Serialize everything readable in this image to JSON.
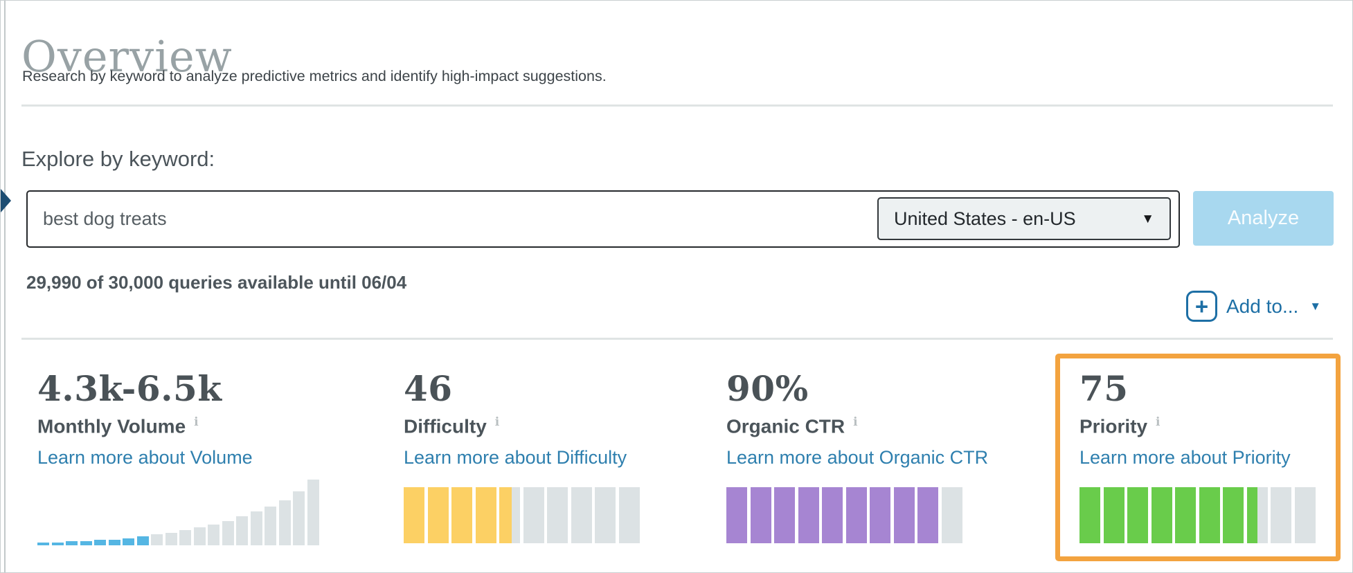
{
  "page": {
    "title": "Overview",
    "subtitle": "Research by keyword to analyze predictive metrics and identify high-impact suggestions."
  },
  "explore": {
    "heading": "Explore by keyword:",
    "keyword_value": "best dog treats",
    "locale_value": "United States - en-US",
    "analyze_label": "Analyze",
    "quota_text": "29,990 of 30,000 queries available until 06/04",
    "add_to_label": "Add to..."
  },
  "metrics": [
    {
      "value": "4.3k-6.5k",
      "label": "Monthly Volume",
      "info_icon": "i",
      "learn_more": "Learn more about Volume",
      "highlighted": false
    },
    {
      "value": "46",
      "label": "Difficulty",
      "info_icon": "i",
      "learn_more": "Learn more about Difficulty",
      "highlighted": false
    },
    {
      "value": "90%",
      "label": "Organic CTR",
      "info_icon": "i",
      "learn_more": "Learn more about Organic CTR",
      "highlighted": false
    },
    {
      "value": "75",
      "label": "Priority",
      "info_icon": "i",
      "learn_more": "Learn more about Priority",
      "highlighted": true
    }
  ],
  "chart_data": [
    {
      "type": "bar",
      "title": "Monthly Volume range histogram",
      "values": [
        4,
        4,
        6,
        6,
        8,
        8,
        10,
        13,
        16,
        18,
        22,
        26,
        30,
        35,
        42,
        49,
        56,
        65,
        78,
        95
      ],
      "highlight_count": 8,
      "highlight_color": "#55b6e3",
      "base_color": "#dce2e4"
    },
    {
      "type": "meter",
      "title": "Difficulty",
      "value": 46,
      "max": 100,
      "segments": 10,
      "fill_color": "#fcd064",
      "base_color": "#dce2e4"
    },
    {
      "type": "meter",
      "title": "Organic CTR",
      "value": 90,
      "max": 100,
      "segments": 10,
      "fill_color": "#a685d2",
      "base_color": "#dce2e4"
    },
    {
      "type": "meter",
      "title": "Priority",
      "value": 75,
      "max": 100,
      "segments": 10,
      "fill_color": "#69cc4b",
      "base_color": "#dce2e4"
    }
  ],
  "icons": {
    "plus": "+",
    "caret_down": "▼"
  },
  "colors": {
    "link_blue": "#2e7fae",
    "add_to_blue": "#1d6fa5",
    "analyze_bg": "#a8d8ef",
    "highlight_border": "#f3a33f",
    "volume_blue": "#55b6e3",
    "difficulty_yellow": "#fcd064",
    "ctr_purple": "#a685d2",
    "priority_green": "#69cc4b"
  }
}
